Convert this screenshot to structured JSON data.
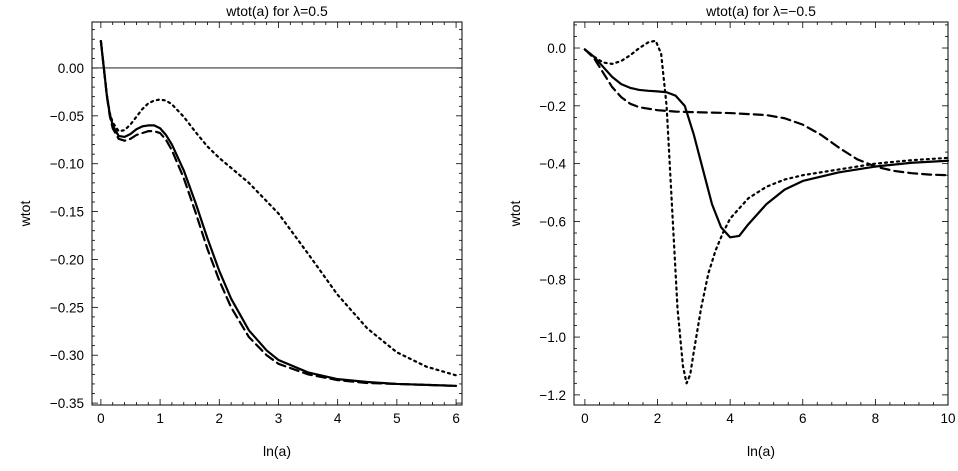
{
  "chart_data": [
    {
      "type": "line",
      "title": "wtot(a) for λ=0.5",
      "xlabel": "ln(a)",
      "ylabel": "wtot",
      "xlim": [
        -0.15,
        6.1
      ],
      "ylim": [
        -0.352,
        0.048
      ],
      "xticks": [
        0,
        1,
        2,
        3,
        4,
        5,
        6
      ],
      "xtick_labels": [
        "0",
        "1",
        "2",
        "3",
        "4",
        "5",
        "6"
      ],
      "yticks": [
        0.0,
        -0.05,
        -0.1,
        -0.15,
        -0.2,
        -0.25,
        -0.3,
        -0.35
      ],
      "ytick_labels": [
        "0.00",
        "−0.05",
        "−0.10",
        "−0.15",
        "−0.20",
        "−0.25",
        "−0.30",
        "−0.35"
      ],
      "zero_line": true,
      "grid": false,
      "series": [
        {
          "style": "solid",
          "x": [
            0,
            0.05,
            0.1,
            0.15,
            0.2,
            0.3,
            0.4,
            0.5,
            0.6,
            0.7,
            0.8,
            0.9,
            1.0,
            1.1,
            1.2,
            1.4,
            1.6,
            1.8,
            2.0,
            2.2,
            2.5,
            2.8,
            3.0,
            3.5,
            4.0,
            4.5,
            5.0,
            5.5,
            6.0
          ],
          "y": [
            0.028,
            0.0,
            -0.028,
            -0.048,
            -0.06,
            -0.071,
            -0.072,
            -0.069,
            -0.064,
            -0.061,
            -0.06,
            -0.06,
            -0.063,
            -0.07,
            -0.08,
            -0.107,
            -0.141,
            -0.178,
            -0.212,
            -0.241,
            -0.274,
            -0.295,
            -0.305,
            -0.318,
            -0.325,
            -0.328,
            -0.33,
            -0.331,
            -0.332
          ]
        },
        {
          "style": "dashed",
          "x": [
            0,
            0.05,
            0.1,
            0.15,
            0.2,
            0.3,
            0.4,
            0.5,
            0.6,
            0.7,
            0.8,
            0.9,
            1.0,
            1.1,
            1.2,
            1.4,
            1.6,
            1.8,
            2.0,
            2.2,
            2.5,
            2.8,
            3.0,
            3.5,
            4.0,
            4.5,
            5.0,
            5.5,
            6.0
          ],
          "y": [
            0.028,
            0.0,
            -0.029,
            -0.05,
            -0.063,
            -0.074,
            -0.076,
            -0.074,
            -0.07,
            -0.068,
            -0.066,
            -0.066,
            -0.068,
            -0.075,
            -0.086,
            -0.115,
            -0.151,
            -0.189,
            -0.222,
            -0.25,
            -0.281,
            -0.3,
            -0.309,
            -0.32,
            -0.326,
            -0.329,
            -0.33,
            -0.331,
            -0.332
          ]
        },
        {
          "style": "dotted",
          "x": [
            0,
            0.05,
            0.1,
            0.15,
            0.2,
            0.3,
            0.4,
            0.5,
            0.6,
            0.7,
            0.8,
            0.9,
            1.0,
            1.1,
            1.2,
            1.4,
            1.6,
            1.8,
            2.0,
            2.5,
            3.0,
            3.5,
            4.0,
            4.5,
            5.0,
            5.5,
            6.0
          ],
          "y": [
            0.028,
            0.0,
            -0.028,
            -0.047,
            -0.057,
            -0.066,
            -0.065,
            -0.059,
            -0.051,
            -0.043,
            -0.037,
            -0.034,
            -0.033,
            -0.034,
            -0.038,
            -0.051,
            -0.067,
            -0.082,
            -0.094,
            -0.12,
            -0.152,
            -0.194,
            -0.237,
            -0.272,
            -0.297,
            -0.312,
            -0.321
          ]
        }
      ]
    },
    {
      "type": "line",
      "title": "wtot(a) for λ=−0.5",
      "xlabel": "ln(a)",
      "ylabel": "wtot",
      "xlim": [
        -0.3,
        10.0
      ],
      "ylim": [
        -1.235,
        0.09
      ],
      "xticks": [
        0,
        2,
        4,
        6,
        8,
        10
      ],
      "xtick_labels": [
        "0",
        "2",
        "4",
        "6",
        "8",
        "10"
      ],
      "yticks": [
        0.0,
        -0.2,
        -0.4,
        -0.6,
        -0.8,
        -1.0,
        -1.2
      ],
      "ytick_labels": [
        "0.0",
        "−0.2",
        "−0.4",
        "−0.6",
        "−0.8",
        "−1.0",
        "−1.2"
      ],
      "zero_line": false,
      "grid": false,
      "series": [
        {
          "style": "solid",
          "x": [
            0,
            0.25,
            0.5,
            0.75,
            1.0,
            1.25,
            1.5,
            1.75,
            2.0,
            2.25,
            2.5,
            2.75,
            3.0,
            3.25,
            3.5,
            3.75,
            4.0,
            4.25,
            4.5,
            5.0,
            5.5,
            6.0,
            7.0,
            8.0,
            9.0,
            10.0
          ],
          "y": [
            -0.005,
            -0.03,
            -0.065,
            -0.1,
            -0.125,
            -0.138,
            -0.145,
            -0.148,
            -0.15,
            -0.153,
            -0.165,
            -0.2,
            -0.3,
            -0.42,
            -0.54,
            -0.62,
            -0.655,
            -0.65,
            -0.61,
            -0.54,
            -0.49,
            -0.46,
            -0.43,
            -0.41,
            -0.397,
            -0.39
          ]
        },
        {
          "style": "dashed",
          "x": [
            0,
            0.25,
            0.5,
            0.75,
            1.0,
            1.25,
            1.5,
            2.0,
            2.5,
            3.0,
            4.0,
            5.0,
            5.5,
            6.0,
            6.5,
            7.0,
            7.5,
            8.0,
            8.5,
            9.0,
            9.5,
            10.0
          ],
          "y": [
            -0.005,
            -0.035,
            -0.085,
            -0.135,
            -0.17,
            -0.193,
            -0.205,
            -0.215,
            -0.22,
            -0.222,
            -0.225,
            -0.232,
            -0.243,
            -0.265,
            -0.3,
            -0.345,
            -0.385,
            -0.41,
            -0.425,
            -0.433,
            -0.438,
            -0.44
          ]
        },
        {
          "style": "dotted",
          "x": [
            0,
            0.25,
            0.5,
            0.75,
            1.0,
            1.25,
            1.5,
            1.75,
            1.95,
            2.1,
            2.25,
            2.4,
            2.55,
            2.7,
            2.8,
            2.9,
            3.0,
            3.2,
            3.4,
            3.6,
            3.8,
            4.0,
            4.5,
            5.0,
            5.5,
            6.0,
            7.0,
            8.0,
            9.0,
            10.0
          ],
          "y": [
            -0.005,
            -0.03,
            -0.05,
            -0.055,
            -0.045,
            -0.025,
            0.0,
            0.02,
            0.025,
            -0.02,
            -0.2,
            -0.55,
            -0.9,
            -1.1,
            -1.16,
            -1.13,
            -1.05,
            -0.9,
            -0.78,
            -0.7,
            -0.64,
            -0.59,
            -0.52,
            -0.48,
            -0.455,
            -0.44,
            -0.42,
            -0.4,
            -0.388,
            -0.38
          ]
        }
      ]
    }
  ]
}
